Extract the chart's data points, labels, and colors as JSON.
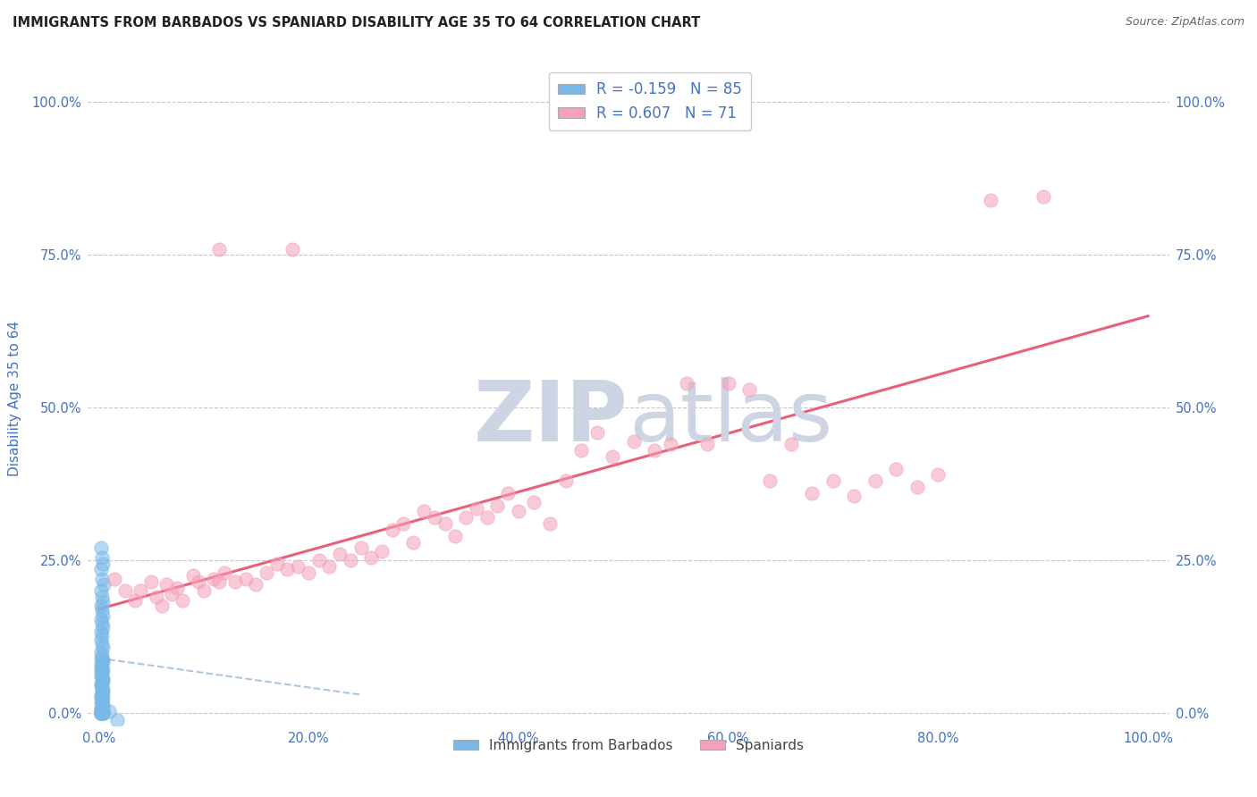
{
  "title": "IMMIGRANTS FROM BARBADOS VS SPANIARD DISABILITY AGE 35 TO 64 CORRELATION CHART",
  "source": "Source: ZipAtlas.com",
  "ylabel": "Disability Age 35 to 64",
  "x_tick_labels": [
    "0.0%",
    "20.0%",
    "40.0%",
    "60.0%",
    "80.0%",
    "100.0%"
  ],
  "x_tick_positions": [
    0,
    0.2,
    0.4,
    0.6,
    0.8,
    1.0
  ],
  "y_tick_labels": [
    "0.0%",
    "25.0%",
    "50.0%",
    "75.0%",
    "100.0%"
  ],
  "y_tick_positions": [
    0,
    0.25,
    0.5,
    0.75,
    1.0
  ],
  "xlim": [
    -0.01,
    1.02
  ],
  "ylim": [
    -0.02,
    1.05
  ],
  "legend_label_1": "Immigrants from Barbados",
  "legend_label_2": "Spaniards",
  "r1": -0.159,
  "n1": 85,
  "r2": 0.607,
  "n2": 71,
  "color_blue": "#7ab8e8",
  "color_pink": "#f4a0b8",
  "color_blue_line": "#a0bcd8",
  "color_pink_line": "#e8607a",
  "background_color": "#ffffff",
  "grid_color": "#c8c8c8",
  "watermark_color": "#cdd5e5",
  "title_color": "#222222",
  "source_color": "#666666",
  "axis_label_color": "#4472c4",
  "tick_label_color": "#4472c4",
  "blue_scatter_x": [
    0.002,
    0.003,
    0.004,
    0.002,
    0.003,
    0.005,
    0.002,
    0.003,
    0.004,
    0.002,
    0.003,
    0.004,
    0.002,
    0.003,
    0.004,
    0.002,
    0.003,
    0.002,
    0.003,
    0.004,
    0.002,
    0.003,
    0.004,
    0.002,
    0.003,
    0.002,
    0.003,
    0.004,
    0.002,
    0.003,
    0.004,
    0.002,
    0.003,
    0.004,
    0.002,
    0.003,
    0.004,
    0.002,
    0.003,
    0.004,
    0.002,
    0.003,
    0.004,
    0.002,
    0.003,
    0.004,
    0.002,
    0.003,
    0.004,
    0.002,
    0.003,
    0.004,
    0.002,
    0.003,
    0.004,
    0.002,
    0.003,
    0.004,
    0.002,
    0.003,
    0.004,
    0.002,
    0.003,
    0.004,
    0.002,
    0.003,
    0.004,
    0.002,
    0.003,
    0.004,
    0.002,
    0.003,
    0.004,
    0.002,
    0.003,
    0.004,
    0.002,
    0.003,
    0.004,
    0.002,
    0.003,
    0.004,
    0.002,
    0.01,
    0.018
  ],
  "blue_scatter_y": [
    0.27,
    0.255,
    0.245,
    0.235,
    0.22,
    0.21,
    0.2,
    0.19,
    0.182,
    0.175,
    0.168,
    0.16,
    0.153,
    0.147,
    0.14,
    0.133,
    0.127,
    0.12,
    0.113,
    0.107,
    0.1,
    0.093,
    0.087,
    0.08,
    0.073,
    0.067,
    0.06,
    0.053,
    0.047,
    0.04,
    0.033,
    0.027,
    0.02,
    0.013,
    0.007,
    0.003,
    0.001,
    0.0,
    0.0,
    0.0,
    0.0,
    0.0,
    0.0,
    0.0,
    0.0,
    0.0,
    0.0,
    0.0,
    0.0,
    0.0,
    0.0,
    0.0,
    0.0,
    0.0,
    0.0,
    0.0,
    0.0,
    0.0,
    0.0,
    0.0,
    0.001,
    0.002,
    0.003,
    0.005,
    0.007,
    0.01,
    0.013,
    0.017,
    0.02,
    0.025,
    0.03,
    0.035,
    0.04,
    0.045,
    0.05,
    0.055,
    0.06,
    0.065,
    0.07,
    0.075,
    0.08,
    0.085,
    0.09,
    0.003,
    -0.012
  ],
  "pink_scatter_x": [
    0.015,
    0.025,
    0.035,
    0.04,
    0.05,
    0.055,
    0.06,
    0.065,
    0.07,
    0.075,
    0.08,
    0.09,
    0.095,
    0.1,
    0.11,
    0.115,
    0.12,
    0.13,
    0.14,
    0.15,
    0.16,
    0.17,
    0.18,
    0.185,
    0.19,
    0.2,
    0.21,
    0.22,
    0.23,
    0.24,
    0.25,
    0.26,
    0.27,
    0.28,
    0.29,
    0.3,
    0.31,
    0.32,
    0.33,
    0.34,
    0.35,
    0.36,
    0.37,
    0.38,
    0.39,
    0.4,
    0.415,
    0.43,
    0.445,
    0.46,
    0.475,
    0.49,
    0.51,
    0.53,
    0.545,
    0.56,
    0.58,
    0.6,
    0.62,
    0.64,
    0.66,
    0.68,
    0.7,
    0.72,
    0.74,
    0.76,
    0.78,
    0.8,
    0.85,
    0.9,
    0.115
  ],
  "pink_scatter_y": [
    0.22,
    0.2,
    0.185,
    0.2,
    0.215,
    0.19,
    0.175,
    0.21,
    0.195,
    0.205,
    0.185,
    0.225,
    0.215,
    0.2,
    0.22,
    0.215,
    0.23,
    0.215,
    0.22,
    0.21,
    0.23,
    0.245,
    0.235,
    0.76,
    0.24,
    0.23,
    0.25,
    0.24,
    0.26,
    0.25,
    0.27,
    0.255,
    0.265,
    0.3,
    0.31,
    0.28,
    0.33,
    0.32,
    0.31,
    0.29,
    0.32,
    0.335,
    0.32,
    0.34,
    0.36,
    0.33,
    0.345,
    0.31,
    0.38,
    0.43,
    0.46,
    0.42,
    0.445,
    0.43,
    0.44,
    0.54,
    0.44,
    0.54,
    0.53,
    0.38,
    0.44,
    0.36,
    0.38,
    0.355,
    0.38,
    0.4,
    0.37,
    0.39,
    0.84,
    0.845,
    0.76
  ],
  "pink_trendline_x": [
    0.0,
    1.0
  ],
  "pink_trendline_y": [
    0.17,
    0.65
  ],
  "blue_trendline_x": [
    0.0,
    0.25
  ],
  "blue_trendline_y": [
    0.09,
    0.03
  ]
}
